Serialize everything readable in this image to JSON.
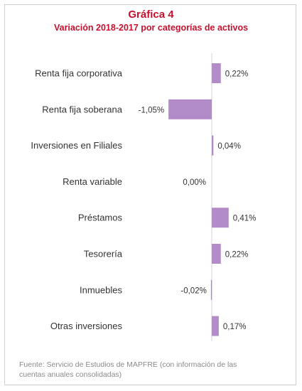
{
  "header": {
    "title": "Gráfica 4",
    "subtitle": "Variación 2018-2017 por categorías de activos"
  },
  "chart_data": {
    "type": "bar",
    "orientation": "horizontal",
    "categories": [
      "Renta fija corporativa",
      "Renta fija soberana",
      "Inversiones en Filiales",
      "Renta variable",
      "Préstamos",
      "Tesorería",
      "Inmuebles",
      "Otras inversiones"
    ],
    "values": [
      0.22,
      -1.05,
      0.04,
      0.0,
      0.41,
      0.22,
      -0.02,
      0.17
    ],
    "value_labels": [
      "0,22%",
      "-1,05%",
      "0,04%",
      "0,00%",
      "0,41%",
      "0,22%",
      "-0,02%",
      "0,17%"
    ],
    "title": "Gráfica 4",
    "subtitle": "Variación 2018-2017 por categorías de activos",
    "xlabel": "",
    "ylabel": "",
    "bar_color": "#b28cc8",
    "axis_color": "#d3d3d3"
  },
  "footer": {
    "source": "Fuente: Servicio de Estudios de MAPFRE (con información de las cuentas anuales consolidadas)"
  }
}
